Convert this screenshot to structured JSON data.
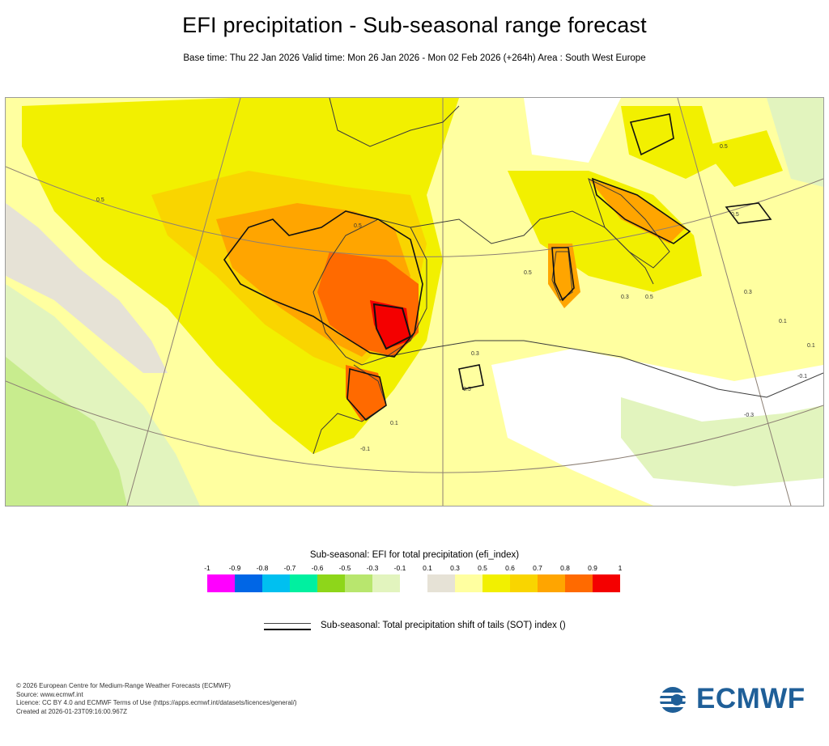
{
  "header": {
    "title": "EFI precipitation - Sub-seasonal range forecast",
    "subtitle": "Base time: Thu 22 Jan 2026 Valid time: Mon 26 Jan 2026 - Mon 02 Feb 2026 (+264h) Area : South West Europe"
  },
  "map": {
    "area": "South West Europe",
    "contour_labels": [
      "0.5",
      "0.5",
      "0.3",
      "0.5",
      "0.3",
      "0.3",
      "0.5",
      "0.5",
      "-0.1",
      "0.1",
      "-0.3",
      "0.1",
      "0.5",
      "0.5",
      "0.1",
      "-0.1"
    ],
    "colors": {
      "land_line": "#3a3a3a",
      "grid_line": "#8c7f74"
    }
  },
  "legend": {
    "title": "Sub-seasonal: EFI for total precipitation (efi_index)",
    "ticks": [
      "-1",
      "-0.9",
      "-0.8",
      "-0.7",
      "-0.6",
      "-0.5",
      "-0.3",
      "-0.1",
      "0.1",
      "0.3",
      "0.5",
      "0.6",
      "0.7",
      "0.8",
      "0.9",
      "1"
    ],
    "colors": [
      "#ff00ff",
      "#0066e6",
      "#00c0f0",
      "#00f0a0",
      "#8ed61a",
      "#b8e66e",
      "#e2f4be",
      "#ffffff",
      "#e6e2d6",
      "#ffffa0",
      "#f2f000",
      "#f9d500",
      "#ffa500",
      "#ff6a00",
      "#f40000"
    ],
    "sot_label": "Sub-seasonal: Total precipitation shift of tails (SOT) index ()"
  },
  "footer": {
    "copyright": "© 2026 European Centre for Medium-Range Weather Forecasts (ECMWF)",
    "source": "Source: www.ecmwf.int",
    "licence": "Licence: CC BY 4.0 and ECMWF Terms of Use (https://apps.ecmwf.int/datasets/licences/general/)",
    "created": "Created at 2026-01-23T09:16:00.967Z"
  },
  "logo": {
    "text": "ECMWF",
    "color": "#1f5f98"
  }
}
